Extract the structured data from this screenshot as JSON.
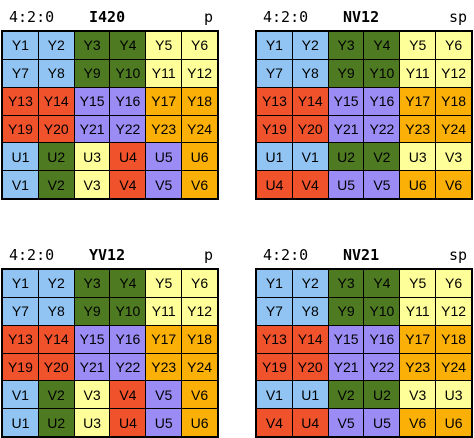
{
  "panels": [
    {
      "subsampling": "4:2:0",
      "name": "I420",
      "kind": "p",
      "cells": [
        [
          "Y1",
          "blue"
        ],
        [
          "Y2",
          "blue"
        ],
        [
          "Y3",
          "green"
        ],
        [
          "Y4",
          "green"
        ],
        [
          "Y5",
          "yellow"
        ],
        [
          "Y6",
          "yellow"
        ],
        [
          "Y7",
          "blue"
        ],
        [
          "Y8",
          "blue"
        ],
        [
          "Y9",
          "green"
        ],
        [
          "Y10",
          "green"
        ],
        [
          "Y11",
          "yellow"
        ],
        [
          "Y12",
          "yellow"
        ],
        [
          "Y13",
          "red"
        ],
        [
          "Y14",
          "red"
        ],
        [
          "Y15",
          "purple"
        ],
        [
          "Y16",
          "purple"
        ],
        [
          "Y17",
          "orange"
        ],
        [
          "Y18",
          "orange"
        ],
        [
          "Y19",
          "red"
        ],
        [
          "Y20",
          "red"
        ],
        [
          "Y21",
          "purple"
        ],
        [
          "Y22",
          "purple"
        ],
        [
          "Y23",
          "orange"
        ],
        [
          "Y24",
          "orange"
        ],
        [
          "U1",
          "blue"
        ],
        [
          "U2",
          "green"
        ],
        [
          "U3",
          "yellow"
        ],
        [
          "U4",
          "red"
        ],
        [
          "U5",
          "purple"
        ],
        [
          "U6",
          "orange"
        ],
        [
          "V1",
          "blue"
        ],
        [
          "V2",
          "green"
        ],
        [
          "V3",
          "yellow"
        ],
        [
          "V4",
          "red"
        ],
        [
          "V5",
          "purple"
        ],
        [
          "V6",
          "orange"
        ]
      ]
    },
    {
      "subsampling": "4:2:0",
      "name": "NV12",
      "kind": "sp",
      "cells": [
        [
          "Y1",
          "blue"
        ],
        [
          "Y2",
          "blue"
        ],
        [
          "Y3",
          "green"
        ],
        [
          "Y4",
          "green"
        ],
        [
          "Y5",
          "yellow"
        ],
        [
          "Y6",
          "yellow"
        ],
        [
          "Y7",
          "blue"
        ],
        [
          "Y8",
          "blue"
        ],
        [
          "Y9",
          "green"
        ],
        [
          "Y10",
          "green"
        ],
        [
          "Y11",
          "yellow"
        ],
        [
          "Y12",
          "yellow"
        ],
        [
          "Y13",
          "red"
        ],
        [
          "Y14",
          "red"
        ],
        [
          "Y15",
          "purple"
        ],
        [
          "Y16",
          "purple"
        ],
        [
          "Y17",
          "orange"
        ],
        [
          "Y18",
          "orange"
        ],
        [
          "Y19",
          "red"
        ],
        [
          "Y20",
          "red"
        ],
        [
          "Y21",
          "purple"
        ],
        [
          "Y22",
          "purple"
        ],
        [
          "Y23",
          "orange"
        ],
        [
          "Y24",
          "orange"
        ],
        [
          "U1",
          "blue"
        ],
        [
          "V1",
          "blue"
        ],
        [
          "U2",
          "green"
        ],
        [
          "V2",
          "green"
        ],
        [
          "U3",
          "yellow"
        ],
        [
          "V3",
          "yellow"
        ],
        [
          "U4",
          "red"
        ],
        [
          "V4",
          "red"
        ],
        [
          "U5",
          "purple"
        ],
        [
          "V5",
          "purple"
        ],
        [
          "U6",
          "orange"
        ],
        [
          "V6",
          "orange"
        ]
      ]
    },
    {
      "subsampling": "4:2:0",
      "name": "YV12",
      "kind": "p",
      "cells": [
        [
          "Y1",
          "blue"
        ],
        [
          "Y2",
          "blue"
        ],
        [
          "Y3",
          "green"
        ],
        [
          "Y4",
          "green"
        ],
        [
          "Y5",
          "yellow"
        ],
        [
          "Y6",
          "yellow"
        ],
        [
          "Y7",
          "blue"
        ],
        [
          "Y8",
          "blue"
        ],
        [
          "Y9",
          "green"
        ],
        [
          "Y10",
          "green"
        ],
        [
          "Y11",
          "yellow"
        ],
        [
          "Y12",
          "yellow"
        ],
        [
          "Y13",
          "red"
        ],
        [
          "Y14",
          "red"
        ],
        [
          "Y15",
          "purple"
        ],
        [
          "Y16",
          "purple"
        ],
        [
          "Y17",
          "orange"
        ],
        [
          "Y18",
          "orange"
        ],
        [
          "Y19",
          "red"
        ],
        [
          "Y20",
          "red"
        ],
        [
          "Y21",
          "purple"
        ],
        [
          "Y22",
          "purple"
        ],
        [
          "Y23",
          "orange"
        ],
        [
          "Y24",
          "orange"
        ],
        [
          "V1",
          "blue"
        ],
        [
          "V2",
          "green"
        ],
        [
          "V3",
          "yellow"
        ],
        [
          "V4",
          "red"
        ],
        [
          "V5",
          "purple"
        ],
        [
          "V6",
          "orange"
        ],
        [
          "U1",
          "blue"
        ],
        [
          "U2",
          "green"
        ],
        [
          "U3",
          "yellow"
        ],
        [
          "U4",
          "red"
        ],
        [
          "U5",
          "purple"
        ],
        [
          "U6",
          "orange"
        ]
      ]
    },
    {
      "subsampling": "4:2:0",
      "name": "NV21",
      "kind": "sp",
      "cells": [
        [
          "Y1",
          "blue"
        ],
        [
          "Y2",
          "blue"
        ],
        [
          "Y3",
          "green"
        ],
        [
          "Y4",
          "green"
        ],
        [
          "Y5",
          "yellow"
        ],
        [
          "Y6",
          "yellow"
        ],
        [
          "Y7",
          "blue"
        ],
        [
          "Y8",
          "blue"
        ],
        [
          "Y9",
          "green"
        ],
        [
          "Y10",
          "green"
        ],
        [
          "Y11",
          "yellow"
        ],
        [
          "Y12",
          "yellow"
        ],
        [
          "Y13",
          "red"
        ],
        [
          "Y14",
          "red"
        ],
        [
          "Y15",
          "purple"
        ],
        [
          "Y16",
          "purple"
        ],
        [
          "Y17",
          "orange"
        ],
        [
          "Y18",
          "orange"
        ],
        [
          "Y19",
          "red"
        ],
        [
          "Y20",
          "red"
        ],
        [
          "Y21",
          "purple"
        ],
        [
          "Y22",
          "purple"
        ],
        [
          "Y23",
          "orange"
        ],
        [
          "Y24",
          "orange"
        ],
        [
          "V1",
          "blue"
        ],
        [
          "U1",
          "blue"
        ],
        [
          "V2",
          "green"
        ],
        [
          "U2",
          "green"
        ],
        [
          "V3",
          "yellow"
        ],
        [
          "U3",
          "yellow"
        ],
        [
          "V4",
          "red"
        ],
        [
          "U4",
          "red"
        ],
        [
          "V5",
          "purple"
        ],
        [
          "U5",
          "purple"
        ],
        [
          "V6",
          "orange"
        ],
        [
          "U6",
          "orange"
        ]
      ]
    }
  ],
  "colors": {
    "blue": "#91c4f2",
    "green": "#4e7a22",
    "yellow": "#ffff99",
    "red": "#f0522c",
    "purple": "#9b8cf5",
    "orange": "#fbb008"
  }
}
